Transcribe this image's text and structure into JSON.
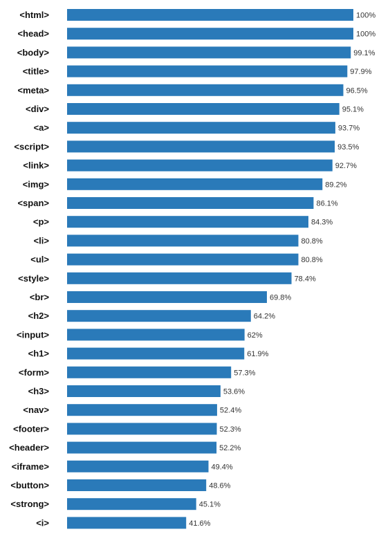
{
  "chart_data": {
    "type": "bar",
    "orientation": "horizontal",
    "categories": [
      "<html>",
      "<head>",
      "<body>",
      "<title>",
      "<meta>",
      "<div>",
      "<a>",
      "<script>",
      "<link>",
      "<img>",
      "<span>",
      "<p>",
      "<li>",
      "<ul>",
      "<style>",
      "<br>",
      "<h2>",
      "<input>",
      "<h1>",
      "<form>",
      "<h3>",
      "<nav>",
      "<footer>",
      "<header>",
      "<iframe>",
      "<button>",
      "<strong>",
      "<i>"
    ],
    "values": [
      100,
      100,
      99.1,
      97.9,
      96.5,
      95.1,
      93.7,
      93.5,
      92.7,
      89.2,
      86.1,
      84.3,
      80.8,
      80.8,
      78.4,
      69.8,
      64.2,
      62,
      61.9,
      57.3,
      53.6,
      52.4,
      52.3,
      52.2,
      49.4,
      48.6,
      45.1,
      41.6
    ],
    "value_labels": [
      "100%",
      "100%",
      "99.1%",
      "97.9%",
      "96.5%",
      "95.1%",
      "93.7%",
      "93.5%",
      "92.7%",
      "89.2%",
      "86.1%",
      "84.3%",
      "80.8%",
      "80.8%",
      "78.4%",
      "69.8%",
      "64.2%",
      "62%",
      "61.9%",
      "57.3%",
      "53.6%",
      "52.4%",
      "52.3%",
      "52.2%",
      "49.4%",
      "48.6%",
      "45.1%",
      "41.6%"
    ],
    "xlim": [
      0,
      100
    ],
    "grid": false,
    "bar_color": "#2a7ab9"
  }
}
